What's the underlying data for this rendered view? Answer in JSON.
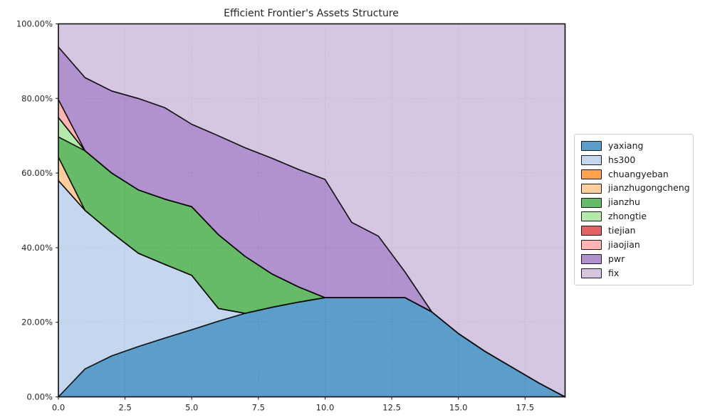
{
  "figure": {
    "title": "Efficient Frontier's Assets Structure",
    "background": "#ffffff"
  },
  "chart_data": {
    "type": "area",
    "stacked": true,
    "title": "Efficient Frontier's Assets Structure",
    "xlabel": "",
    "ylabel": "",
    "xlim": [
      0,
      19
    ],
    "ylim": [
      0,
      100
    ],
    "grid": "dotted",
    "grid_color": "#b5b0aa",
    "edge_color": "#000000",
    "edge_opacity": 0.78,
    "fill_opacity": 0.72,
    "axis_color": "#1a1a1a",
    "legend_position": "center-right-outside",
    "x": [
      0,
      1,
      2,
      3,
      4,
      5,
      6,
      7,
      8,
      9,
      10,
      11,
      12,
      13,
      14,
      15,
      16,
      17,
      18,
      19
    ],
    "x_ticks": [
      0,
      2.5,
      5,
      7.5,
      10,
      12.5,
      15,
      17.5
    ],
    "x_tick_labels": [
      "0.0",
      "2.5",
      "5.0",
      "7.5",
      "10.0",
      "12.5",
      "15.0",
      "17.5"
    ],
    "y_ticks": [
      0,
      20,
      40,
      60,
      80,
      100
    ],
    "y_tick_labels": [
      "0.00%",
      "20.00%",
      "40.00%",
      "60.00%",
      "80.00%",
      "100.00%"
    ],
    "series": [
      {
        "name": "yaxiang",
        "color": "#1f77b4",
        "values": [
          0,
          7.5,
          11,
          13.5,
          15.8,
          18,
          20.3,
          22.4,
          24,
          25.4,
          26.6,
          26.6,
          26.6,
          26.6,
          22.8,
          17,
          12.2,
          8,
          3.8,
          0
        ]
      },
      {
        "name": "hs300",
        "color": "#aec7e8",
        "values": [
          58,
          42.5,
          33,
          25,
          19.7,
          14.6,
          3.4,
          0,
          0,
          0,
          0,
          0,
          0,
          0,
          0,
          0,
          0,
          0,
          0,
          0
        ]
      },
      {
        "name": "chuangyeban",
        "color": "#ff7f0e",
        "values": [
          0,
          0,
          0,
          0,
          0,
          0,
          0,
          0,
          0,
          0,
          0,
          0,
          0,
          0,
          0,
          0,
          0,
          0,
          0,
          0
        ]
      },
      {
        "name": "jianzhugongcheng",
        "color": "#ffbb78",
        "values": [
          6.3,
          0,
          0,
          0,
          0,
          0,
          0,
          0,
          0,
          0,
          0,
          0,
          0,
          0,
          0,
          0,
          0,
          0,
          0,
          0
        ]
      },
      {
        "name": "jianzhu",
        "color": "#2ca02c",
        "values": [
          5.4,
          16,
          16,
          17,
          17.5,
          18.4,
          19.8,
          15.3,
          9,
          4.1,
          0,
          0,
          0,
          0,
          0,
          0,
          0,
          0,
          0,
          0
        ]
      },
      {
        "name": "zhongtie",
        "color": "#98df8a",
        "values": [
          5.2,
          0,
          0,
          0,
          0,
          0,
          0,
          0,
          0,
          0,
          0,
          0,
          0,
          0,
          0,
          0,
          0,
          0,
          0,
          0
        ]
      },
      {
        "name": "tiejian",
        "color": "#d62728",
        "values": [
          0,
          0,
          0,
          0,
          0,
          0,
          0,
          0,
          0,
          0,
          0,
          0,
          0,
          0,
          0,
          0,
          0,
          0,
          0,
          0
        ]
      },
      {
        "name": "jiaojian",
        "color": "#ff9896",
        "values": [
          4.8,
          0,
          0,
          0,
          0,
          0,
          0,
          0,
          0,
          0,
          0,
          0,
          0,
          0,
          0,
          0,
          0,
          0,
          0,
          0
        ]
      },
      {
        "name": "pwr",
        "color": "#9467bd",
        "values": [
          14.1,
          19.6,
          22,
          24.5,
          24.5,
          22.1,
          26.5,
          29.1,
          31,
          31.5,
          31.7,
          20.2,
          16.5,
          6.9,
          0,
          0,
          0,
          0,
          0,
          0
        ]
      },
      {
        "name": "fix",
        "color": "#c5b0d5",
        "values": [
          6.2,
          14.4,
          18,
          20,
          22.5,
          26.9,
          30,
          33.2,
          36,
          39,
          41.7,
          53.2,
          56.9,
          66.5,
          77.2,
          83,
          87.8,
          92,
          96.2,
          100
        ]
      }
    ]
  }
}
